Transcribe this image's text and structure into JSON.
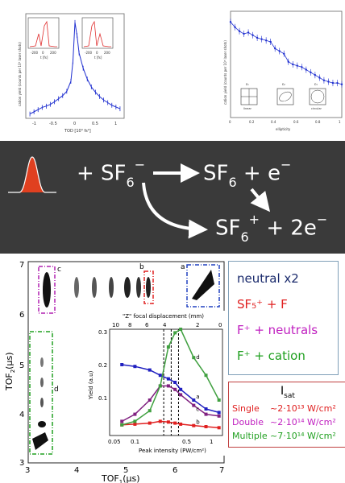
{
  "top_left": {
    "ylabel": "cation yield (counts per 10³ laser shots)",
    "xlabel": "TOD [10³ fs²]",
    "xticks": [
      "-1",
      "-0.5",
      "0",
      "0.5",
      "1"
    ],
    "inset_xlabel": "t [fs]",
    "inset_ticks": [
      "-200",
      "0",
      "200"
    ]
  },
  "top_right": {
    "ylabel": "cation yield (counts per 10³ laser shots)",
    "xlabel": "ellipticity",
    "xticks": [
      "0",
      "0.2",
      "0.4",
      "0.6",
      "0.8",
      "1"
    ],
    "panels": [
      {
        "label": "ε₁",
        "sub": "linear"
      },
      {
        "label": "ε₂",
        "sub": ""
      },
      {
        "label": "ε₃",
        "sub": "circular"
      }
    ]
  },
  "reaction": {
    "reactant": "+ SF",
    "reactant_sub": "6",
    "reactant_sup": "−",
    "product1": "SF",
    "product1_sub": "6",
    "product1_tail": " + e",
    "product1_sup": "−",
    "product2": "SF",
    "product2_sub": "6",
    "product2_sup": "+",
    "product2_tail": " + 2e",
    "product2_tail_sup": "−"
  },
  "tof_map": {
    "xlabel": "TOF",
    "xlabel_sub": "1",
    "xlabel_unit": "(μs)",
    "ylabel": "TOF",
    "ylabel_sub": "2",
    "ylabel_unit": "(μs)",
    "xticks": [
      "3",
      "4",
      "5",
      "6",
      "7"
    ],
    "yticks": [
      "3",
      "4",
      "5",
      "6",
      "7"
    ],
    "box_labels": [
      "c",
      "b",
      "a",
      "d"
    ]
  },
  "inset": {
    "top_axis_label": "\"Z\" focal displacement (mm)",
    "top_ticks": [
      "10",
      "8",
      "6",
      "4",
      "2",
      "0"
    ],
    "ylabel": "Yield (a.u)",
    "yticks": [
      "0.1",
      "0.2",
      "0.3"
    ],
    "xlabel": "Peak intensity (PW/cm²)",
    "xticks": [
      "0.05",
      "0.1",
      "0.5",
      "1"
    ],
    "curve_labels": [
      "d",
      "a",
      "c",
      "b"
    ]
  },
  "legend": [
    {
      "text": "neutral x2",
      "color": "#1a2a6c"
    },
    {
      "text": "SF₅⁺ + F",
      "color": "#e02020"
    },
    {
      "text": "F⁺ + neutrals",
      "color": "#c020c0"
    },
    {
      "text": "F⁺ + cation",
      "color": "#20a020"
    }
  ],
  "isat": {
    "title": "I",
    "title_sub": "sat",
    "rows": [
      {
        "label": "Single",
        "value": "~2·10¹³ W/cm²",
        "color": "#e02020"
      },
      {
        "label": "Double",
        "value": "~2·10¹⁴ W/cm²",
        "color": "#c020c0"
      },
      {
        "label": "Multiple",
        "value": "~7·10¹⁴ W/cm²",
        "color": "#20a020"
      }
    ]
  },
  "chart_data": [
    {
      "type": "line",
      "title": "",
      "xlabel": "TOD [10³ fs²]",
      "ylabel": "cation yield (counts per 10³ laser shots)",
      "xlim": [
        -1.2,
        1.2
      ],
      "ylim": [
        0,
        2.4
      ],
      "x": [
        -1.1,
        -1.0,
        -0.9,
        -0.8,
        -0.7,
        -0.6,
        -0.5,
        -0.4,
        -0.3,
        -0.2,
        -0.1,
        -0.05,
        0,
        0.05,
        0.1,
        0.2,
        0.3,
        0.4,
        0.5,
        0.6,
        0.7,
        0.8,
        0.9,
        1.0,
        1.1
      ],
      "series": [
        {
          "values": [
            0.1,
            0.15,
            0.2,
            0.25,
            0.28,
            0.32,
            0.38,
            0.45,
            0.52,
            0.62,
            0.85,
            1.3,
            2.2,
            1.9,
            1.5,
            1.15,
            0.9,
            0.72,
            0.6,
            0.5,
            0.42,
            0.36,
            0.3,
            0.26,
            0.22
          ]
        }
      ]
    },
    {
      "type": "line",
      "title": "",
      "xlabel": "ellipticity",
      "ylabel": "cation yield (counts per 10³ laser shots)",
      "xlim": [
        0,
        1
      ],
      "ylim": [
        0,
        0.8
      ],
      "x": [
        0,
        0.04,
        0.08,
        0.12,
        0.16,
        0.2,
        0.24,
        0.28,
        0.32,
        0.36,
        0.4,
        0.44,
        0.48,
        0.52,
        0.56,
        0.6,
        0.64,
        0.68,
        0.72,
        0.76,
        0.8,
        0.84,
        0.88,
        0.92,
        0.96,
        1.0
      ],
      "series": [
        {
          "values": [
            0.72,
            0.68,
            0.65,
            0.63,
            0.64,
            0.62,
            0.6,
            0.59,
            0.58,
            0.57,
            0.52,
            0.5,
            0.48,
            0.42,
            0.4,
            0.39,
            0.38,
            0.36,
            0.34,
            0.32,
            0.3,
            0.28,
            0.27,
            0.26,
            0.26,
            0.25
          ]
        }
      ]
    },
    {
      "type": "line",
      "title": "",
      "xlabel": "Peak intensity (PW/cm²)",
      "ylabel": "Yield (a.u)",
      "x_scale": "log",
      "xlim": [
        0.05,
        1.1
      ],
      "ylim": [
        0,
        0.3
      ],
      "x": [
        0.07,
        0.1,
        0.15,
        0.2,
        0.25,
        0.3,
        0.35,
        0.5,
        0.7,
        1.0
      ],
      "series": [
        {
          "name": "a",
          "color": "#2020c0",
          "values": [
            0.2,
            0.195,
            0.185,
            0.17,
            0.16,
            0.15,
            0.13,
            0.1,
            0.075,
            0.065
          ]
        },
        {
          "name": "b",
          "color": "#e02020",
          "values": [
            0.03,
            0.032,
            0.035,
            0.04,
            0.038,
            0.035,
            0.032,
            0.028,
            0.025,
            0.022
          ]
        },
        {
          "name": "c",
          "color": "#802080",
          "values": [
            0.04,
            0.06,
            0.1,
            0.14,
            0.14,
            0.13,
            0.115,
            0.085,
            0.06,
            0.055
          ]
        },
        {
          "name": "d",
          "color": "#40a040",
          "values": [
            0.03,
            0.04,
            0.07,
            0.14,
            0.25,
            0.29,
            0.3,
            0.22,
            0.17,
            0.1
          ]
        }
      ]
    }
  ]
}
